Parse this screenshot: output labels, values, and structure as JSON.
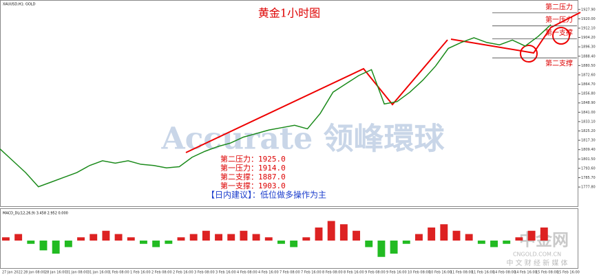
{
  "chart_data": {
    "type": "line",
    "symbol": "XAUUSD,H1: GOLD",
    "title": "黄金1小时图",
    "ylim": [
      1761,
      1933
    ],
    "yticks": [
      {
        "value": 1927.9,
        "label": "1927.90"
      },
      {
        "value": 1920,
        "label": "1920.00"
      },
      {
        "value": 1912.1,
        "label": "1912.10"
      },
      {
        "value": 1904.2,
        "label": "1904.20"
      },
      {
        "value": 1896.3,
        "label": "1896.30"
      },
      {
        "value": 1888.4,
        "label": "1888.40"
      },
      {
        "value": 1880.5,
        "label": "1880.50"
      },
      {
        "value": 1872.6,
        "label": "1872.60"
      },
      {
        "value": 1864.7,
        "label": "1864.70"
      },
      {
        "value": 1856.8,
        "label": "1856.80"
      },
      {
        "value": 1848.9,
        "label": "1848.90"
      },
      {
        "value": 1841,
        "label": "1841.00"
      },
      {
        "value": 1833.1,
        "label": "1833.10"
      },
      {
        "value": 1825.2,
        "label": "1825.20"
      },
      {
        "value": 1817.3,
        "label": "1817.30"
      },
      {
        "value": 1809.4,
        "label": "1809.40"
      },
      {
        "value": 1801.5,
        "label": "1801.50"
      },
      {
        "value": 1793.6,
        "label": "1793.60"
      },
      {
        "value": 1785.7,
        "label": "1785.70"
      },
      {
        "value": 1777.8,
        "label": "1777.80"
      }
    ],
    "x_labels": [
      "27 Jan 2022",
      "28 Jan 08:00",
      "28 Jan 16:00",
      "31 Jan 08:00",
      "31 Jan 16:00",
      "1 Feb 08:00",
      "1 Feb 16:00",
      "2 Feb 08:00",
      "2 Feb 16:00",
      "3 Feb 08:00",
      "3 Feb 16:00",
      "4 Feb 08:00",
      "4 Feb 16:00",
      "7 Feb 08:00",
      "7 Feb 16:00",
      "8 Feb 08:00",
      "8 Feb 16:00",
      "9 Feb 08:00",
      "9 Feb 16:00",
      "10 Feb 08:00",
      "10 Feb 16:00",
      "11 Feb 08:00",
      "11 Feb 16:00",
      "14 Feb 08:00",
      "14 Feb 16:00",
      "15 Feb 08:00",
      "15 Feb 16:00"
    ],
    "series": [
      {
        "name": "XAUUSD",
        "color": "#1a8a1a",
        "values": [
          1810,
          1800,
          1790,
          1778,
          1782,
          1786,
          1790,
          1796,
          1800,
          1798,
          1800,
          1797,
          1796,
          1794,
          1795,
          1803,
          1808,
          1812,
          1815,
          1820,
          1823,
          1826,
          1828,
          1830,
          1827,
          1840,
          1858,
          1865,
          1872,
          1877,
          1848,
          1850,
          1858,
          1868,
          1880,
          1895,
          1900,
          1904,
          1900,
          1898,
          1902,
          1897,
          1905,
          1915
        ]
      }
    ],
    "levels": [
      {
        "name": "第二压力",
        "value": 1925
      },
      {
        "name": "第一压力",
        "value": 1914
      },
      {
        "name": "第一支撑",
        "value": 1903
      },
      {
        "name": "第二支撑",
        "value": 1887
      }
    ],
    "notes": [
      "第二压力：1925.0",
      "第一压力：1914.0",
      "第二支撑：1887.0",
      "第一支撑：1903.0"
    ],
    "advice": "【日内建议】：低位做多操作为主",
    "macd": {
      "label": "MACD_DL(12,26,9) 3.458 2.952 0.000",
      "ylim": [
        -8,
        8
      ],
      "values": [
        1,
        2,
        -1,
        -3,
        -4,
        -2,
        1,
        2,
        3,
        2,
        1,
        -1,
        -2,
        -1,
        1,
        2,
        3,
        2,
        2,
        3,
        2,
        1,
        -1,
        -2,
        1,
        4,
        6,
        5,
        3,
        -2,
        -5,
        -4,
        -1,
        2,
        4,
        5,
        3,
        2,
        -1,
        -2,
        -1,
        1,
        3,
        4
      ]
    },
    "watermarks": [
      "Accurate 领峰環球",
      "中金网",
      "CNGOLD.COM.CN",
      "中 文 财 经 新 媒 体"
    ]
  }
}
